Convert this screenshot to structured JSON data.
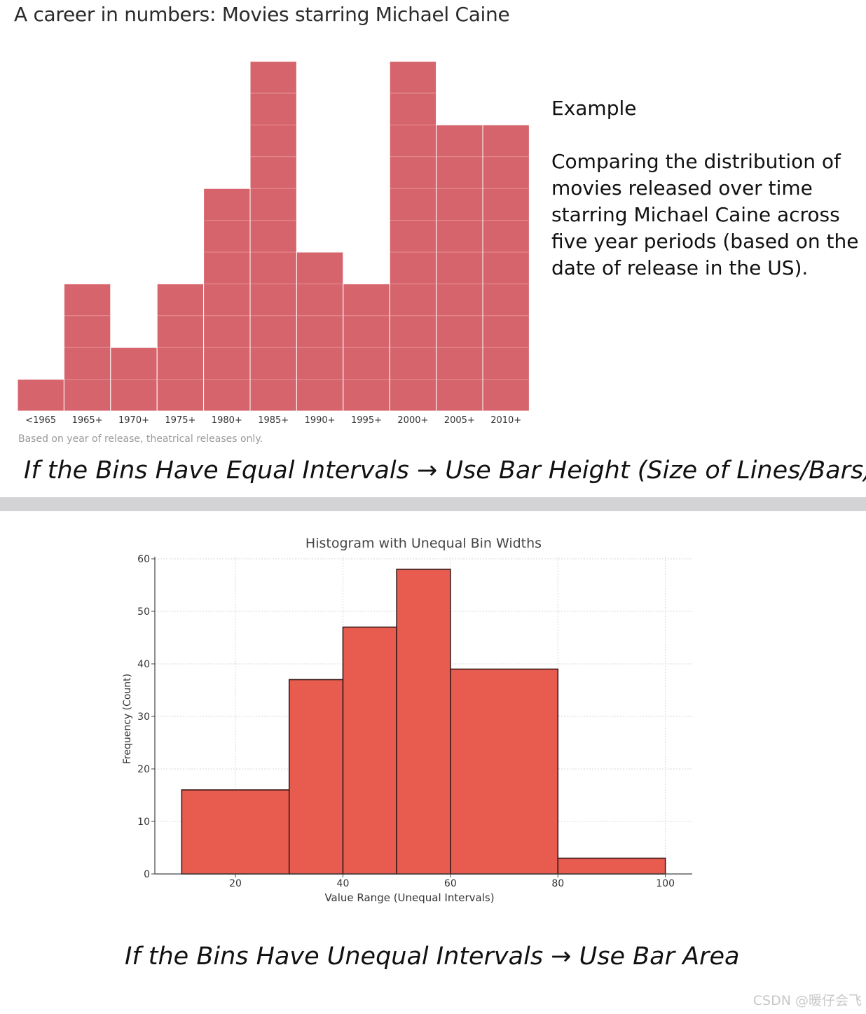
{
  "top_title": "A career in numbers: Movies starring Michael Caine",
  "side_text": {
    "heading": "Example",
    "body": "Comparing the distribution of movies released over time starring Michael Caine across five year periods (based on the date of release in the US)."
  },
  "footnote": "Based on year of release, theatrical releases only.",
  "caption_equal": "If the Bins Have Equal Intervals → Use Bar Height (Size of Lines/Bars)",
  "caption_unequal": "If the Bins Have Unequal Intervals → Use Bar Area",
  "watermark": "CSDN @暖仔会飞",
  "chart_data": [
    {
      "type": "bar",
      "title": "A career in numbers: Movies starring Michael Caine",
      "categories": [
        "<1965",
        "1965+",
        "1970+",
        "1975+",
        "1980+",
        "1985+",
        "1990+",
        "1995+",
        "2000+",
        "2005+",
        "2010+"
      ],
      "values": [
        1,
        4,
        2,
        4,
        7,
        11,
        5,
        4,
        11,
        9,
        9
      ],
      "bar_color": "#d6646d",
      "cell_line_color": "#e58f95",
      "grid": false
    },
    {
      "type": "bar",
      "title": "Histogram with Unequal Bin Widths",
      "xlabel": "Value Range (Unequal Intervals)",
      "ylabel": "Frequency (Count)",
      "bins": [
        {
          "start": 10,
          "end": 30,
          "value": 16
        },
        {
          "start": 30,
          "end": 40,
          "value": 37
        },
        {
          "start": 40,
          "end": 50,
          "value": 47
        },
        {
          "start": 50,
          "end": 60,
          "value": 58
        },
        {
          "start": 60,
          "end": 80,
          "value": 39
        },
        {
          "start": 80,
          "end": 100,
          "value": 3
        }
      ],
      "xticks": [
        20,
        40,
        60,
        80,
        100
      ],
      "yticks": [
        0,
        10,
        20,
        30,
        40,
        50,
        60
      ],
      "xlim": [
        5,
        105
      ],
      "ylim": [
        0,
        60
      ],
      "bar_color": "#e85c50",
      "edge_color": "#3a1a18",
      "grid": true
    }
  ]
}
